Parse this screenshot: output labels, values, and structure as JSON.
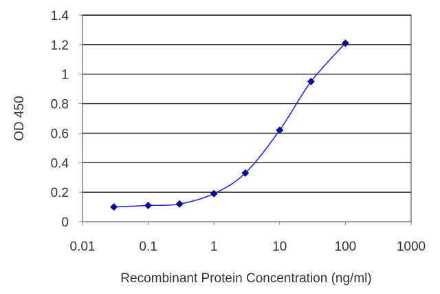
{
  "chart_data": {
    "type": "line",
    "xlabel": "Recombinant Protein Concentration (ng/ml)",
    "ylabel": "OD 450",
    "x_scale": "log",
    "xlim": [
      0.01,
      1000
    ],
    "ylim": [
      0,
      1.4
    ],
    "x_ticks": [
      {
        "value": 0.01,
        "label": "0.01"
      },
      {
        "value": 0.1,
        "label": "0.1"
      },
      {
        "value": 1,
        "label": "1"
      },
      {
        "value": 10,
        "label": "10"
      },
      {
        "value": 100,
        "label": "100"
      },
      {
        "value": 1000,
        "label": "1000"
      }
    ],
    "y_ticks": [
      {
        "value": 0,
        "label": "0"
      },
      {
        "value": 0.2,
        "label": "0.2"
      },
      {
        "value": 0.4,
        "label": "0.4"
      },
      {
        "value": 0.6,
        "label": "0.6"
      },
      {
        "value": 0.8,
        "label": "0.8"
      },
      {
        "value": 1,
        "label": "1"
      },
      {
        "value": 1.2,
        "label": "1.2"
      },
      {
        "value": 1.4,
        "label": "1.4"
      }
    ],
    "grid": "horizontal",
    "series": [
      {
        "color": "#2a2ad0",
        "marker_color": "#0a0a8c",
        "x": [
          0.03,
          0.1,
          0.3,
          1,
          3,
          10,
          30,
          100
        ],
        "y": [
          0.1,
          0.11,
          0.12,
          0.19,
          0.33,
          0.62,
          0.95,
          1.21
        ]
      }
    ]
  }
}
